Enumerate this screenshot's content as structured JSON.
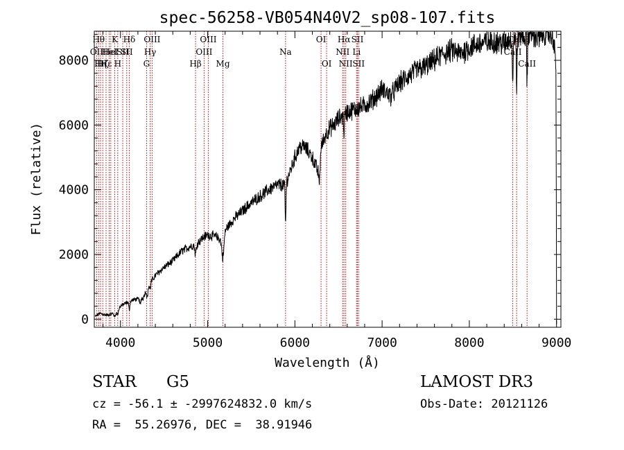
{
  "chart_data": {
    "type": "line",
    "title": "spec-56258-VB054N40V2_sp08-107.fits",
    "xlabel": "Wavelength (Å)",
    "ylabel": "Flux (relative)",
    "xlim": [
      3700,
      9050
    ],
    "ylim": [
      -250,
      8900
    ],
    "xticks": [
      4000,
      5000,
      6000,
      7000,
      8000,
      9000
    ],
    "yticks": [
      0,
      2000,
      4000,
      6000,
      8000
    ],
    "grid": false,
    "series": [
      {
        "name": "flux",
        "color": "#000000",
        "anchors": [
          [
            3710,
            80
          ],
          [
            3760,
            180
          ],
          [
            3800,
            150
          ],
          [
            3850,
            120
          ],
          [
            3900,
            170
          ],
          [
            3950,
            200
          ],
          [
            4000,
            400
          ],
          [
            4050,
            480
          ],
          [
            4100,
            540
          ],
          [
            4150,
            600
          ],
          [
            4200,
            620
          ],
          [
            4260,
            650
          ],
          [
            4300,
            950
          ],
          [
            4350,
            1150
          ],
          [
            4400,
            1350
          ],
          [
            4500,
            1600
          ],
          [
            4600,
            1800
          ],
          [
            4700,
            2100
          ],
          [
            4800,
            2250
          ],
          [
            4860,
            2300
          ],
          [
            4900,
            2400
          ],
          [
            4960,
            2550
          ],
          [
            5000,
            2600
          ],
          [
            5100,
            2550
          ],
          [
            5150,
            2450
          ],
          [
            5200,
            2750
          ],
          [
            5300,
            3100
          ],
          [
            5400,
            3350
          ],
          [
            5500,
            3600
          ],
          [
            5600,
            3800
          ],
          [
            5700,
            4000
          ],
          [
            5800,
            4150
          ],
          [
            5890,
            4150
          ],
          [
            5950,
            4600
          ],
          [
            6000,
            5000
          ],
          [
            6050,
            5300
          ],
          [
            6100,
            5350
          ],
          [
            6150,
            5200
          ],
          [
            6200,
            5000
          ],
          [
            6260,
            4600
          ],
          [
            6300,
            5300
          ],
          [
            6350,
            5700
          ],
          [
            6400,
            5900
          ],
          [
            6450,
            6000
          ],
          [
            6500,
            6200
          ],
          [
            6560,
            6300
          ],
          [
            6600,
            6400
          ],
          [
            6700,
            6500
          ],
          [
            6800,
            6600
          ],
          [
            6900,
            6800
          ],
          [
            7000,
            7100
          ],
          [
            7100,
            6900
          ],
          [
            7200,
            7300
          ],
          [
            7300,
            7500
          ],
          [
            7400,
            7700
          ],
          [
            7500,
            7800
          ],
          [
            7600,
            8000
          ],
          [
            7700,
            8200
          ],
          [
            7800,
            8300
          ],
          [
            7900,
            8200
          ],
          [
            8000,
            8400
          ],
          [
            8100,
            8500
          ],
          [
            8200,
            8550
          ],
          [
            8300,
            8600
          ],
          [
            8400,
            8500
          ],
          [
            8450,
            8650
          ],
          [
            8500,
            8700
          ],
          [
            8560,
            8750
          ],
          [
            8600,
            8800
          ],
          [
            8650,
            8700
          ],
          [
            8700,
            8850
          ],
          [
            8750,
            8750
          ],
          [
            8800,
            8650
          ],
          [
            8850,
            8850
          ],
          [
            8900,
            8850
          ],
          [
            8960,
            8750
          ],
          [
            8995,
            7800
          ]
        ],
        "dips": [
          [
            3934,
            120,
            8
          ],
          [
            3969,
            120,
            8
          ],
          [
            4101,
            250,
            6
          ],
          [
            4226,
            200,
            6
          ],
          [
            4307,
            300,
            8
          ],
          [
            4340,
            200,
            6
          ],
          [
            4861,
            300,
            8
          ],
          [
            5175,
            700,
            12
          ],
          [
            5893,
            1200,
            5
          ],
          [
            6280,
            700,
            8
          ],
          [
            6563,
            500,
            5
          ],
          [
            8498,
            1500,
            4
          ],
          [
            8542,
            1900,
            4
          ],
          [
            8662,
            1400,
            4
          ]
        ]
      }
    ],
    "lines": [
      {
        "wl": 3727,
        "label": "OII",
        "row": 1
      },
      {
        "wl": 3750,
        "label": "Hθ",
        "row": 0
      },
      {
        "wl": 3771,
        "label": "Hη",
        "row": 2
      },
      {
        "wl": 3797,
        "label": "Hζ",
        "row": 2
      },
      {
        "wl": 3835,
        "label": "Hε",
        "row": 2
      },
      {
        "wl": 3871,
        "label": "HeI",
        "row": 1
      },
      {
        "wl": 3889,
        "label": "HeI",
        "row": 1
      },
      {
        "wl": 3934,
        "label": "K",
        "row": 0
      },
      {
        "wl": 3969,
        "label": "H",
        "row": 2
      },
      {
        "wl": 4026,
        "label": "SII",
        "row": 1
      },
      {
        "wl": 4072,
        "label": "SII",
        "row": 1
      },
      {
        "wl": 4101,
        "label": "Hδ",
        "row": 0
      },
      {
        "wl": 4300,
        "label": "G",
        "row": 2
      },
      {
        "wl": 4340,
        "label": "Hγ",
        "row": 1
      },
      {
        "wl": 4363,
        "label": "OIII",
        "row": 0
      },
      {
        "wl": 4861,
        "label": "Hβ",
        "row": 2
      },
      {
        "wl": 4959,
        "label": "OIII",
        "row": 1
      },
      {
        "wl": 5007,
        "label": "OIII",
        "row": 0
      },
      {
        "wl": 5175,
        "label": "Mg",
        "row": 2
      },
      {
        "wl": 5893,
        "label": "Na",
        "row": 1
      },
      {
        "wl": 6300,
        "label": "OI",
        "row": 0
      },
      {
        "wl": 6364,
        "label": "OI",
        "row": 2
      },
      {
        "wl": 6548,
        "label": "NII",
        "row": 1
      },
      {
        "wl": 6563,
        "label": "Hα",
        "row": 0
      },
      {
        "wl": 6583,
        "label": "NII",
        "row": 2
      },
      {
        "wl": 6707,
        "label": "Li",
        "row": 1
      },
      {
        "wl": 6717,
        "label": "SII",
        "row": 0
      },
      {
        "wl": 6731,
        "label": "SII",
        "row": 2
      },
      {
        "wl": 8498,
        "label": "CaII",
        "row": 1
      },
      {
        "wl": 8542,
        "label": "CaII",
        "row": 0
      },
      {
        "wl": 8662,
        "label": "CaII",
        "row": 2
      }
    ]
  },
  "info": {
    "object_class": "STAR",
    "subclass": "G5",
    "survey": "LAMOST DR3",
    "cz_line": "cz = -56.1 ± -2997624832.0 km/s",
    "obs_date_line": "Obs-Date: 20121126",
    "radec_line": "RA =  55.26976, DEC =  38.91946"
  }
}
